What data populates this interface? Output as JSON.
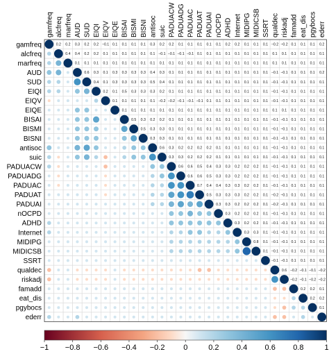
{
  "chart_data": {
    "type": "heatmap",
    "subtype": "correlation-matrix-circles",
    "variables": [
      "gamfreq",
      "alcfreq",
      "marfreq",
      "AUD",
      "SUD",
      "EIQI",
      "EIQV",
      "EIQE",
      "BISAI",
      "BISMI",
      "BISNI",
      "antisoc",
      "suic",
      "PADUACW",
      "PADUADG",
      "PADUAC",
      "PADUAT",
      "PADUAI",
      "nOCPD",
      "ADHD",
      "Internet",
      "MIDIPG",
      "MIDICSB",
      "SSRT",
      "qualdec",
      "riskadj",
      "famadd",
      "eat_dis",
      "pgybocs",
      "ederr"
    ],
    "upper_triangle_values_shown": [
      [
        1,
        0.2,
        0.2,
        0.3,
        0.2,
        0.2,
        -0.1,
        0.1,
        0.1,
        0.1,
        0.1,
        0.3,
        0.2,
        0.2,
        0.1,
        0.1,
        0.1,
        0.1,
        0.1,
        0.2,
        0.2,
        0.1,
        0.1,
        0.1,
        -0.2,
        -0.2,
        0.1,
        0.1,
        0.1,
        0.2
      ],
      [
        null,
        1,
        0.4,
        0.4,
        0.2,
        0.2,
        0.1,
        0.1,
        0.1,
        0.1,
        0.1,
        0.1,
        -0.1,
        -0.1,
        -0.1,
        -0.1,
        0.1,
        0.1,
        0.1,
        0.1,
        0.1,
        0.1,
        0.1,
        0.1,
        0.1,
        0.1,
        0.1,
        0.1,
        0.1,
        0.1
      ],
      [
        null,
        null,
        1,
        0.1,
        0.1,
        0.1,
        0.1,
        0.1,
        0.1,
        0.1,
        0.1,
        0.1,
        0.1,
        0.1,
        0.1,
        0.1,
        0.1,
        0.1,
        0.1,
        0.1,
        0.1,
        0.1,
        0.1,
        0.1,
        0.1,
        0.1,
        0.1,
        0.1,
        0.1,
        0.1
      ],
      [
        null,
        null,
        null,
        1,
        0.6,
        0.3,
        0.1,
        0.3,
        0.3,
        0.3,
        0.3,
        0.4,
        0.3,
        0.1,
        0.1,
        0.1,
        0.1,
        0.1,
        0.1,
        0.1,
        0.1,
        0.1,
        0.1,
        0.1,
        -0.1,
        -0.1,
        0.1,
        0.1,
        0.1,
        0.2
      ],
      [
        null,
        null,
        null,
        null,
        1,
        0.4,
        0.1,
        0.3,
        0.3,
        0.3,
        0.3,
        0.5,
        0.4,
        0.1,
        0.1,
        0.1,
        0.1,
        0.1,
        0.1,
        0.1,
        0.1,
        0.1,
        0.1,
        0.1,
        -0.1,
        -0.1,
        0.1,
        0.1,
        0.1,
        0.1
      ],
      [
        null,
        null,
        null,
        null,
        null,
        1,
        0.2,
        0.1,
        0.5,
        0.3,
        0.3,
        0.3,
        0.2,
        0.1,
        0.1,
        0.1,
        0.1,
        0.1,
        0.1,
        0.1,
        0.1,
        0.1,
        0.1,
        0.1,
        -0.1,
        -0.1,
        0.1,
        0.1,
        0.1,
        0.1
      ],
      [
        null,
        null,
        null,
        null,
        null,
        null,
        1,
        0.1,
        0.1,
        0.1,
        0.1,
        0.1,
        -0.2,
        -0.2,
        -0.1,
        -0.1,
        -0.1,
        0.1,
        0.1,
        0.1,
        0.1,
        0.1,
        0.1,
        0.1,
        -0.1,
        -0.1,
        0.1,
        0.1,
        0.1,
        0.1
      ],
      [
        null,
        null,
        null,
        null,
        null,
        null,
        null,
        1,
        0.1,
        0.1,
        0.1,
        0.1,
        0.1,
        0.1,
        0.1,
        0.1,
        0.1,
        0.1,
        0.1,
        0.1,
        0.1,
        0.1,
        0.1,
        0.1,
        0.1,
        0.1,
        0.1,
        0.1,
        0.1,
        0.1
      ],
      [
        null,
        null,
        null,
        null,
        null,
        null,
        null,
        null,
        1,
        0.5,
        0.3,
        0.2,
        0.2,
        0.1,
        0.1,
        0.1,
        0.1,
        0.1,
        0.1,
        0.1,
        0.1,
        0.1,
        0.1,
        0.1,
        -0.1,
        -0.1,
        0.1,
        0.1,
        0.1,
        0.1
      ],
      [
        null,
        null,
        null,
        null,
        null,
        null,
        null,
        null,
        null,
        1,
        0.5,
        0.3,
        0.3,
        0.1,
        0.1,
        0.1,
        0.1,
        0.1,
        0.1,
        0.1,
        0.1,
        0.1,
        0.1,
        0.1,
        -0.1,
        -0.1,
        0.1,
        0.1,
        0.1,
        0.1
      ],
      [
        null,
        null,
        null,
        null,
        null,
        null,
        null,
        null,
        null,
        null,
        1,
        0.3,
        0.3,
        0.1,
        0.1,
        0.1,
        0.1,
        0.1,
        0.1,
        0.1,
        0.1,
        0.1,
        0.1,
        0.1,
        -0.1,
        -0.1,
        0.1,
        0.1,
        0.1,
        0.1
      ],
      [
        null,
        null,
        null,
        null,
        null,
        null,
        null,
        null,
        null,
        null,
        null,
        1,
        0.6,
        0.3,
        0.2,
        0.2,
        0.2,
        0.2,
        0.1,
        0.1,
        0.1,
        0.1,
        0.1,
        0.1,
        -0.1,
        -0.1,
        0.1,
        0.1,
        0.1,
        0.1
      ],
      [
        null,
        null,
        null,
        null,
        null,
        null,
        null,
        null,
        null,
        null,
        null,
        null,
        1,
        0.3,
        0.3,
        0.2,
        0.2,
        0.2,
        0.1,
        0.1,
        0.1,
        0.1,
        0.1,
        0.1,
        -0.1,
        -0.1,
        0.1,
        0.1,
        0.1,
        0.1
      ],
      [
        null,
        null,
        null,
        null,
        null,
        null,
        null,
        null,
        null,
        null,
        null,
        null,
        null,
        1,
        0.6,
        0.6,
        0.5,
        0.4,
        0.3,
        0.3,
        0.2,
        0.2,
        0.2,
        0.1,
        -0.1,
        -0.1,
        0.1,
        0.1,
        0.1,
        0.1
      ],
      [
        null,
        null,
        null,
        null,
        null,
        null,
        null,
        null,
        null,
        null,
        null,
        null,
        null,
        null,
        1,
        0.6,
        0.6,
        0.5,
        0.3,
        0.3,
        0.2,
        0.2,
        0.2,
        0.1,
        -0.1,
        -0.1,
        0.1,
        0.1,
        0.1,
        0.1
      ],
      [
        null,
        null,
        null,
        null,
        null,
        null,
        null,
        null,
        null,
        null,
        null,
        null,
        null,
        null,
        null,
        1,
        0.7,
        0.4,
        0.4,
        0.3,
        0.3,
        0.2,
        0.2,
        0.1,
        -0.1,
        -0.1,
        0.1,
        0.1,
        0.1,
        0.1
      ],
      [
        null,
        null,
        null,
        null,
        null,
        null,
        null,
        null,
        null,
        null,
        null,
        null,
        null,
        null,
        null,
        null,
        1,
        0.5,
        0.3,
        0.3,
        0.3,
        0.2,
        0.2,
        0.1,
        -0.2,
        -0.1,
        0.1,
        0.1,
        0.1,
        0.1
      ],
      [
        null,
        null,
        null,
        null,
        null,
        null,
        null,
        null,
        null,
        null,
        null,
        null,
        null,
        null,
        null,
        null,
        null,
        1,
        0.3,
        0.3,
        0.2,
        0.2,
        0.2,
        0.1,
        -0.2,
        -0.1,
        0.1,
        0.1,
        0.1,
        0.1
      ],
      [
        null,
        null,
        null,
        null,
        null,
        null,
        null,
        null,
        null,
        null,
        null,
        null,
        null,
        null,
        null,
        null,
        null,
        null,
        1,
        0.3,
        0.2,
        0.2,
        0.2,
        0.1,
        -0.1,
        -0.1,
        0.1,
        0.1,
        0.1,
        0.1
      ],
      [
        null,
        null,
        null,
        null,
        null,
        null,
        null,
        null,
        null,
        null,
        null,
        null,
        null,
        null,
        null,
        null,
        null,
        null,
        null,
        1,
        0.3,
        0.2,
        0.2,
        0.1,
        -0.1,
        -0.1,
        0.1,
        0.1,
        0.1,
        0.1
      ],
      [
        null,
        null,
        null,
        null,
        null,
        null,
        null,
        null,
        null,
        null,
        null,
        null,
        null,
        null,
        null,
        null,
        null,
        null,
        null,
        null,
        1,
        0.3,
        0.3,
        0.1,
        -0.1,
        -0.1,
        0.1,
        0.1,
        0.1,
        0.1
      ],
      [
        null,
        null,
        null,
        null,
        null,
        null,
        null,
        null,
        null,
        null,
        null,
        null,
        null,
        null,
        null,
        null,
        null,
        null,
        null,
        null,
        null,
        1,
        0.8,
        0.1,
        -0.1,
        -0.1,
        0.1,
        0.1,
        0.1,
        0.1
      ],
      [
        null,
        null,
        null,
        null,
        null,
        null,
        null,
        null,
        null,
        null,
        null,
        null,
        null,
        null,
        null,
        null,
        null,
        null,
        null,
        null,
        null,
        null,
        1,
        0.1,
        -0.1,
        -0.1,
        0.1,
        0.1,
        0.1,
        0.1
      ],
      [
        null,
        null,
        null,
        null,
        null,
        null,
        null,
        null,
        null,
        null,
        null,
        null,
        null,
        null,
        null,
        null,
        null,
        null,
        null,
        null,
        null,
        null,
        null,
        1,
        -0.1,
        -0.1,
        0.1,
        0.1,
        0.1,
        0.1
      ],
      [
        null,
        null,
        null,
        null,
        null,
        null,
        null,
        null,
        null,
        null,
        null,
        null,
        null,
        null,
        null,
        null,
        null,
        null,
        null,
        null,
        null,
        null,
        null,
        null,
        1,
        0.6,
        -0.2,
        -0.1,
        -0.1,
        -0.2
      ],
      [
        null,
        null,
        null,
        null,
        null,
        null,
        null,
        null,
        null,
        null,
        null,
        null,
        null,
        null,
        null,
        null,
        null,
        null,
        null,
        null,
        null,
        null,
        null,
        null,
        null,
        1,
        -0.2,
        -0.1,
        -0.2,
        -0.2
      ],
      [
        null,
        null,
        null,
        null,
        null,
        null,
        null,
        null,
        null,
        null,
        null,
        null,
        null,
        null,
        null,
        null,
        null,
        null,
        null,
        null,
        null,
        null,
        null,
        null,
        null,
        null,
        1,
        0.2,
        0.2,
        0.1
      ],
      [
        null,
        null,
        null,
        null,
        null,
        null,
        null,
        null,
        null,
        null,
        null,
        null,
        null,
        null,
        null,
        null,
        null,
        null,
        null,
        null,
        null,
        null,
        null,
        null,
        null,
        null,
        null,
        1,
        0.2,
        0.2
      ],
      [
        null,
        null,
        null,
        null,
        null,
        null,
        null,
        null,
        null,
        null,
        null,
        null,
        null,
        null,
        null,
        null,
        null,
        null,
        null,
        null,
        null,
        null,
        null,
        null,
        null,
        null,
        null,
        null,
        1,
        0.1
      ],
      [
        null,
        null,
        null,
        null,
        null,
        null,
        null,
        null,
        null,
        null,
        null,
        null,
        null,
        null,
        null,
        null,
        null,
        null,
        null,
        null,
        null,
        null,
        null,
        null,
        null,
        null,
        null,
        null,
        null,
        1
      ]
    ],
    "colorbar_ticks": [
      "−1",
      "−0.8",
      "−0.6",
      "−0.4",
      "−0.2",
      "0",
      "0.2",
      "0.4",
      "0.6",
      "0.8",
      "1"
    ],
    "colorscale": {
      "neg": "#67001f",
      "mid": "#f7f7f7",
      "pos": "#053061"
    },
    "value_range": [
      -1,
      1
    ],
    "legend_position": "bottom"
  }
}
